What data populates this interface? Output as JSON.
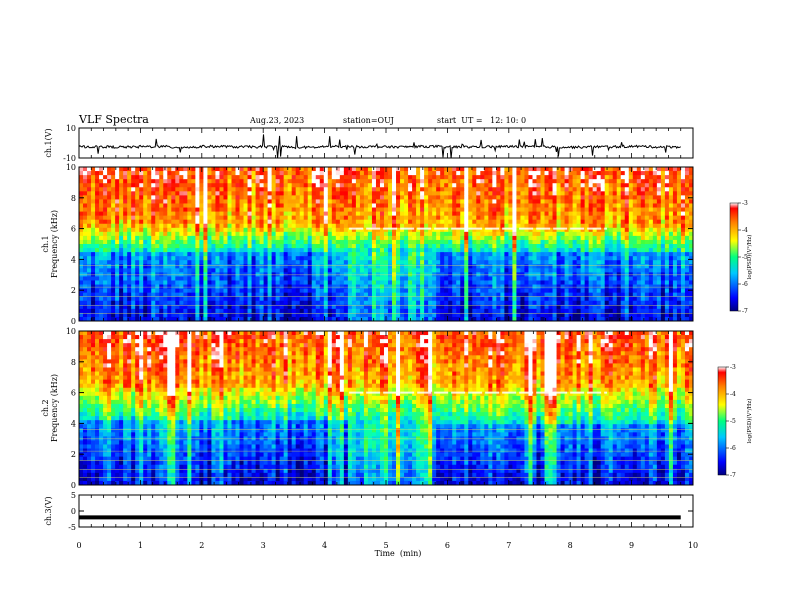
{
  "header": {
    "title": "VLF Spectra",
    "date": "Aug.23, 2023",
    "station": "station=OUJ",
    "start": "start  UT =   12: 10: 0"
  },
  "chart_data": [
    {
      "type": "line",
      "panel": "ch1-waveform",
      "ylabel": "ch.1(V)",
      "ylim": [
        -10,
        10
      ],
      "yticks": [
        {
          "v": 10,
          "label": "10"
        },
        {
          "v": -10,
          "label": "-10"
        }
      ],
      "xlim": [
        0,
        10
      ],
      "baseline": -2.5,
      "series": [
        {
          "values": [
            -2.5,
            -2.7,
            -2.4,
            -2.8,
            -2.3,
            -2.6,
            -2.5,
            -2.9,
            -2.4,
            -2.5,
            -2.6,
            -2.3,
            -2.7,
            -2.5,
            -2.4,
            -2.6,
            -2.8,
            -2.5,
            -2.3,
            -2.6
          ]
        }
      ]
    },
    {
      "type": "heatmap",
      "panel": "ch1-spectrogram",
      "ylabel_top": "ch.1",
      "ylabel": "Frequency (kHz)",
      "xlim": [
        0,
        10
      ],
      "ylim": [
        0,
        10
      ],
      "yticks": [
        {
          "v": 0,
          "label": "0"
        },
        {
          "v": 2,
          "label": "2"
        },
        {
          "v": 4,
          "label": "4"
        },
        {
          "v": 6,
          "label": "6"
        },
        {
          "v": 8,
          "label": "8"
        },
        {
          "v": 10,
          "label": "10"
        }
      ],
      "time_segments": [
        {
          "t0": 0.0,
          "t1": 4.4,
          "upper_kHz": 6.2,
          "floor_kHz": 4.6
        },
        {
          "t0": 4.4,
          "t1": 5.8,
          "upper_kHz": 6.0,
          "floor_kHz": 4.4
        },
        {
          "t0": 5.8,
          "t1": 9.8,
          "upper_kHz": 6.1,
          "floor_kHz": 4.6
        }
      ],
      "emission_band_kHz": 6.0,
      "emission_span_min": [
        4.4,
        8.6
      ],
      "colorbar": {
        "label": "log(PSD)(V²/Hz)",
        "ticks": [
          {
            "v": -3,
            "label": "-3"
          },
          {
            "v": -4,
            "label": "-4"
          },
          {
            "v": -5,
            "label": "-5"
          },
          {
            "v": -6,
            "label": "-6"
          },
          {
            "v": -7,
            "label": "-7"
          }
        ]
      }
    },
    {
      "type": "heatmap",
      "panel": "ch2-spectrogram",
      "ylabel_top": "ch.2",
      "ylabel": "Frequency (kHz)",
      "xlim": [
        0,
        10
      ],
      "ylim": [
        0,
        10
      ],
      "yticks": [
        {
          "v": 0,
          "label": "0"
        },
        {
          "v": 2,
          "label": "2"
        },
        {
          "v": 4,
          "label": "4"
        },
        {
          "v": 6,
          "label": "6"
        },
        {
          "v": 8,
          "label": "8"
        },
        {
          "v": 10,
          "label": "10"
        }
      ],
      "time_segments": [
        {
          "t0": 0.0,
          "t1": 4.4,
          "upper_kHz": 6.4,
          "floor_kHz": 4.2
        },
        {
          "t0": 4.4,
          "t1": 5.8,
          "upper_kHz": 6.3,
          "floor_kHz": 3.8
        },
        {
          "t0": 5.8,
          "t1": 9.8,
          "upper_kHz": 6.4,
          "floor_kHz": 4.0
        }
      ],
      "emission_band_kHz": 6.0,
      "emission_span_min": [
        4.4,
        8.6
      ],
      "colorbar": {
        "label": "log(PSD)(V²/Hz)",
        "ticks": [
          {
            "v": -3,
            "label": "-3"
          },
          {
            "v": -4,
            "label": "-4"
          },
          {
            "v": -5,
            "label": "-5"
          },
          {
            "v": -6,
            "label": "-6"
          },
          {
            "v": -7,
            "label": "-7"
          }
        ]
      }
    },
    {
      "type": "line",
      "panel": "ch3-waveform",
      "ylabel": "ch.3(V)",
      "ylim": [
        -5,
        5
      ],
      "yticks": [
        {
          "v": 5,
          "label": "5"
        },
        {
          "v": 0,
          "label": "0"
        },
        {
          "v": -5,
          "label": "-5"
        }
      ],
      "xlim": [
        0,
        10
      ],
      "series": [
        {
          "values": [
            -2,
            -2
          ]
        }
      ]
    }
  ],
  "xaxis": {
    "label": "Time  (min)",
    "ticks": [
      {
        "v": 0,
        "label": "0"
      },
      {
        "v": 1,
        "label": "1"
      },
      {
        "v": 2,
        "label": "2"
      },
      {
        "v": 3,
        "label": "3"
      },
      {
        "v": 4,
        "label": "4"
      },
      {
        "v": 5,
        "label": "5"
      },
      {
        "v": 6,
        "label": "6"
      },
      {
        "v": 7,
        "label": "7"
      },
      {
        "v": 8,
        "label": "8"
      },
      {
        "v": 9,
        "label": "9"
      },
      {
        "v": 10,
        "label": "10"
      }
    ]
  }
}
